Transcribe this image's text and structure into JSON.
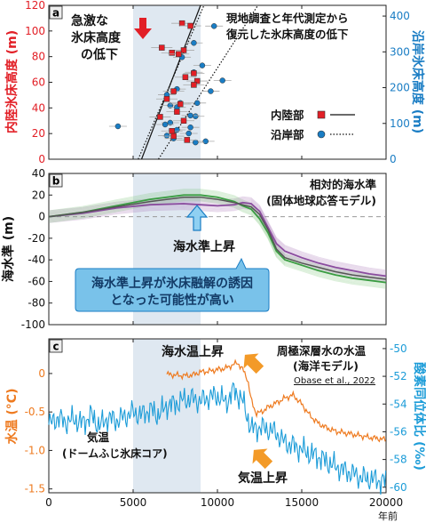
{
  "colors": {
    "inland": "#e21f26",
    "coastal": "#1a7dc4",
    "orange": "#ee7a1f",
    "blue": "#1c9cd8",
    "green": "#3a9c42",
    "purple": "#a877b8",
    "shade": "#dfe8f1",
    "callout_fill": "#79c2ea",
    "callout_text": "#123a66"
  },
  "panels": {
    "a": {
      "letter": "a",
      "annotation": [
        "急激な",
        "氷床高度",
        "の低下"
      ],
      "description": [
        "現地調査と年代測定から",
        "復元した氷床高度の低下"
      ],
      "legend": {
        "inland": "内陸部",
        "coastal": "沿岸部"
      }
    },
    "b": {
      "letter": "b",
      "model_label": [
        "相対的海水準",
        "(固体地球応答モデル)"
      ],
      "rise_label": "海水準上昇",
      "callout": [
        "海水準上昇が氷床融解の誘因",
        "となった可能性が高い"
      ]
    },
    "c": {
      "letter": "c",
      "ocean_rise": "海水温上昇",
      "air_rise": "気温上昇",
      "ocean_series": [
        "周極深層水の水温",
        "(海洋モデル)"
      ],
      "citation": "Obase et al., 2022",
      "air_series": [
        "気温",
        "(ドームふじ氷床コア)"
      ]
    }
  },
  "chart_data": [
    {
      "panel": "a",
      "type": "scatter",
      "ylabel_left": "内陸氷床高度 (m)",
      "ylabel_right": "沿岸氷床高度 (m)",
      "ylim_left": [
        0,
        120
      ],
      "ylim_right": [
        0,
        430
      ],
      "left_ticks": [
        0,
        20,
        40,
        60,
        80,
        100,
        120
      ],
      "right_ticks": [
        0,
        100,
        200,
        300,
        400
      ],
      "shaded_x": [
        5000,
        9000
      ],
      "series": [
        {
          "name": "内陸部",
          "marker": "square",
          "line": "solid",
          "points": [
            [
              7900,
              106
            ],
            [
              8400,
              104
            ],
            [
              6700,
              87
            ],
            [
              8000,
              85
            ],
            [
              7300,
              83
            ],
            [
              7700,
              82
            ],
            [
              8600,
              67
            ],
            [
              8100,
              64
            ],
            [
              8800,
              61
            ],
            [
              8600,
              58
            ],
            [
              7400,
              53
            ],
            [
              7000,
              47
            ],
            [
              7800,
              43
            ],
            [
              7600,
              37
            ],
            [
              6600,
              33
            ],
            [
              8000,
              30
            ],
            [
              7300,
              22
            ],
            [
              7400,
              18
            ],
            [
              8200,
              15
            ]
          ],
          "trend": [
            [
              5500,
              0
            ],
            [
              9000,
              120
            ]
          ]
        },
        {
          "name": "沿岸部",
          "marker": "circle",
          "line": "dotted",
          "points": [
            [
              9800,
              372
            ],
            [
              8600,
              325
            ],
            [
              7900,
              285
            ],
            [
              9100,
              262
            ],
            [
              10300,
              220
            ],
            [
              8600,
              243
            ],
            [
              7600,
              196
            ],
            [
              7000,
              180
            ],
            [
              7800,
              157
            ],
            [
              8800,
              157
            ],
            [
              9600,
              190
            ],
            [
              7200,
              150
            ],
            [
              8700,
              120
            ],
            [
              8400,
              122
            ],
            [
              7200,
              102
            ],
            [
              6900,
              97
            ],
            [
              8400,
              89
            ],
            [
              7600,
              82
            ],
            [
              8300,
              72
            ],
            [
              7000,
              66
            ],
            [
              7400,
              58
            ],
            [
              9300,
              50
            ],
            [
              8700,
              47
            ],
            [
              4100,
              92
            ],
            [
              7600,
              145
            ]
          ],
          "trend": [
            [
              6500,
              0
            ],
            [
              12400,
              430
            ]
          ]
        }
      ]
    },
    {
      "panel": "b",
      "type": "line",
      "ylabel": "海水準 (m)",
      "ylim": [
        -100,
        40
      ],
      "yticks": [
        -100,
        -80,
        -60,
        -40,
        -20,
        0,
        20,
        40
      ],
      "zero_line": "dashed",
      "shaded_x": [
        5000,
        9000
      ],
      "series": [
        {
          "name": "green",
          "x": [
            0,
            2000,
            4000,
            6000,
            8000,
            9000,
            10000,
            11000,
            11500,
            12000,
            12500,
            13000,
            13500,
            14000,
            15000,
            16000,
            17000,
            18000,
            19000,
            20000
          ],
          "y": [
            0,
            4,
            10,
            16,
            20,
            20,
            18,
            14,
            10,
            7,
            -2,
            -15,
            -32,
            -40,
            -45,
            -50,
            -54,
            -57,
            -59,
            -61
          ]
        },
        {
          "name": "purple",
          "x": [
            0,
            2000,
            4000,
            6000,
            8000,
            9000,
            10000,
            11000,
            11500,
            12000,
            12500,
            13000,
            13500,
            14000,
            15000,
            16000,
            17000,
            18000,
            19000,
            20000
          ],
          "y": [
            0,
            3,
            8,
            11,
            12,
            11,
            10,
            11,
            13,
            12,
            5,
            -10,
            -25,
            -32,
            -38,
            -43,
            -47,
            -50,
            -53,
            -55
          ]
        },
        {
          "name": "center",
          "x": [
            0,
            2000,
            4000,
            6000,
            8000,
            9000,
            10000,
            11000,
            11500,
            12000,
            12500,
            13000,
            13500,
            14000,
            15000,
            16000,
            17000,
            18000,
            19000,
            20000
          ],
          "y": [
            0,
            4,
            9,
            14,
            18,
            18,
            16,
            13,
            11,
            9,
            2,
            -12,
            -30,
            -38,
            -43,
            -47,
            -51,
            -54,
            -56,
            -58
          ]
        }
      ]
    },
    {
      "panel": "c",
      "type": "line",
      "xlabel": "年前",
      "xlim": [
        0,
        20000
      ],
      "xticks": [
        0,
        5000,
        10000,
        15000,
        20000
      ],
      "ylabel_left": "水温 (°C)",
      "ylabel_right": "酸素同位体比 (‰)",
      "ylim_left": [
        -1.55,
        0.45
      ],
      "left_ticks": [
        0,
        -0.5,
        -1.0,
        -1.5
      ],
      "ylim_right": [
        -60.4,
        -49.3
      ],
      "right_ticks": [
        -50,
        -52,
        -54,
        -56,
        -58,
        -60
      ],
      "shaded_x": [
        5000,
        9000
      ],
      "series": [
        {
          "name": "周極深層水の水温",
          "axis": "left",
          "x": [
            7000,
            7500,
            8000,
            8500,
            9000,
            9500,
            10000,
            10500,
            11000,
            11200,
            11500,
            11800,
            12000,
            12300,
            12600,
            13000,
            13500,
            14000,
            14500,
            15000,
            15500,
            16000,
            16500,
            17000,
            18000,
            19000,
            20000
          ],
          "y": [
            -0.01,
            -0.02,
            -0.03,
            -0.02,
            0.02,
            0.03,
            0.05,
            0.07,
            0.12,
            0.14,
            0.05,
            -0.08,
            -0.35,
            -0.52,
            -0.5,
            -0.44,
            -0.38,
            -0.32,
            -0.28,
            -0.4,
            -0.55,
            -0.65,
            -0.71,
            -0.75,
            -0.79,
            -0.83,
            -0.86
          ]
        },
        {
          "name": "気温",
          "axis": "right",
          "x": [
            0,
            500,
            1000,
            1500,
            2000,
            2500,
            3000,
            3500,
            4000,
            4500,
            5000,
            5500,
            6000,
            6500,
            7000,
            7500,
            8000,
            8500,
            9000,
            9500,
            10000,
            10500,
            11000,
            11500,
            12000,
            12500,
            13000,
            13500,
            14000,
            14500,
            15000,
            15500,
            16000,
            16500,
            17000,
            17500,
            18000,
            18500,
            19000,
            19500,
            20000
          ],
          "y": [
            -55.5,
            -55.0,
            -55.3,
            -55.1,
            -55.4,
            -54.8,
            -55.6,
            -55.0,
            -55.2,
            -54.9,
            -54.6,
            -54.8,
            -54.4,
            -54.8,
            -54.1,
            -54.0,
            -53.7,
            -53.6,
            -53.8,
            -53.5,
            -53.4,
            -53.9,
            -53.0,
            -53.8,
            -55.8,
            -55.7,
            -55.8,
            -56.1,
            -56.8,
            -57.0,
            -57.3,
            -57.6,
            -57.8,
            -58.2,
            -58.5,
            -58.8,
            -59.0,
            -59.3,
            -59.4,
            -59.5,
            -59.6
          ]
        }
      ]
    }
  ]
}
